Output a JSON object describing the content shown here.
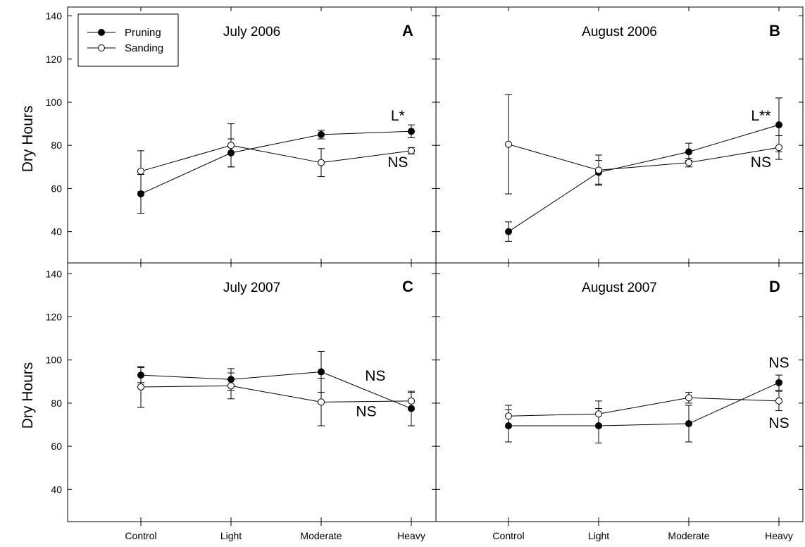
{
  "figure": {
    "ylabel": "Dry Hours",
    "legend": {
      "placement": "top-left",
      "entries": [
        {
          "name": "Pruning",
          "marker": "filled-circle"
        },
        {
          "name": "Sanding",
          "marker": "open-circle"
        }
      ]
    }
  },
  "chart_data": [
    {
      "type": "line",
      "panel": "A",
      "title": "July 2006",
      "categories": [
        "Control",
        "Light",
        "Moderate",
        "Heavy"
      ],
      "ylim": [
        20,
        140
      ],
      "yticks": [
        40,
        60,
        80,
        100,
        120,
        140
      ],
      "series": [
        {
          "name": "Pruning",
          "values": [
            57.5,
            76.5,
            85,
            86.5
          ],
          "errors": [
            9,
            6.5,
            2,
            3
          ],
          "marker": "filled"
        },
        {
          "name": "Sanding",
          "values": [
            68,
            80,
            72,
            77.5
          ],
          "errors": [
            9.5,
            10,
            6.5,
            1.5
          ],
          "marker": "open"
        }
      ],
      "annotations": [
        {
          "text": "L*",
          "x": 2.85,
          "y": 91.5
        },
        {
          "text": "NS",
          "x": 2.85,
          "y": 70
        }
      ]
    },
    {
      "type": "line",
      "panel": "B",
      "title": "August 2006",
      "categories": [
        "Control",
        "Light",
        "Moderate",
        "Heavy"
      ],
      "ylim": [
        20,
        140
      ],
      "yticks": [
        40,
        60,
        80,
        100,
        120,
        140
      ],
      "series": [
        {
          "name": "Pruning",
          "values": [
            40,
            67.5,
            77,
            89.5
          ],
          "errors": [
            4.5,
            5.5,
            4,
            12.5
          ],
          "marker": "filled"
        },
        {
          "name": "Sanding",
          "values": [
            80.5,
            68.5,
            72,
            79
          ],
          "errors": [
            23,
            7,
            2,
            5.5
          ],
          "marker": "open"
        }
      ],
      "annotations": [
        {
          "text": "L**",
          "x": 2.8,
          "y": 91.5
        },
        {
          "text": "NS",
          "x": 2.8,
          "y": 70
        }
      ]
    },
    {
      "type": "line",
      "panel": "C",
      "title": "July 2007",
      "categories": [
        "Control",
        "Light",
        "Moderate",
        "Heavy"
      ],
      "ylim": [
        20,
        140
      ],
      "yticks": [
        40,
        60,
        80,
        100,
        120,
        140
      ],
      "series": [
        {
          "name": "Pruning",
          "values": [
            93,
            91,
            94.5,
            77.5
          ],
          "errors": [
            3.5,
            5,
            9.5,
            8
          ],
          "marker": "filled"
        },
        {
          "name": "Sanding",
          "values": [
            87.5,
            88,
            80.5,
            81
          ],
          "errors": [
            9.5,
            6,
            11,
            4
          ],
          "marker": "open"
        }
      ],
      "annotations": [
        {
          "text": "NS",
          "x": 2.6,
          "y": 90.5
        },
        {
          "text": "NS",
          "x": 2.5,
          "y": 74
        }
      ]
    },
    {
      "type": "line",
      "panel": "D",
      "title": "August 2007",
      "categories": [
        "Control",
        "Light",
        "Moderate",
        "Heavy"
      ],
      "ylim": [
        20,
        140
      ],
      "yticks": [
        40,
        60,
        80,
        100,
        120,
        140
      ],
      "series": [
        {
          "name": "Pruning",
          "values": [
            69.5,
            69.5,
            70.5,
            89.5
          ],
          "errors": [
            7.5,
            8,
            8.5,
            3.5
          ],
          "marker": "filled"
        },
        {
          "name": "Sanding",
          "values": [
            74,
            75,
            82.5,
            81
          ],
          "errors": [
            5,
            6,
            2.5,
            4.5
          ],
          "marker": "open"
        }
      ],
      "annotations": [
        {
          "text": "NS",
          "x": 3,
          "y": 96.5
        },
        {
          "text": "NS",
          "x": 3,
          "y": 68.5
        }
      ]
    }
  ]
}
